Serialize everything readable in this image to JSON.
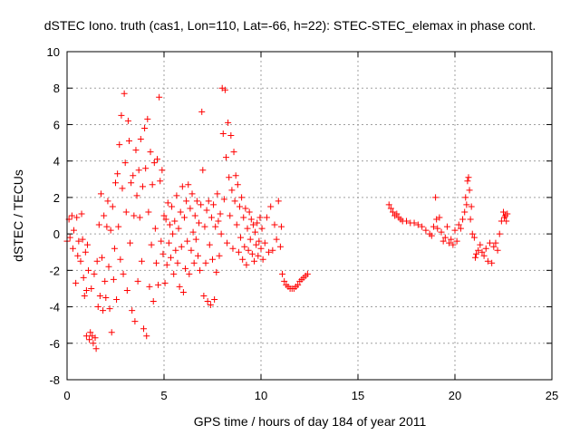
{
  "chart_data": {
    "type": "scatter",
    "title": "dSTEC Iono. truth (cas1, Lon=110, Lat=-66, h=22): STEC-STEC_elemax in phase cont.",
    "xlabel": "GPS time / hours of day 184 of year 2011",
    "ylabel": "dSTEC  / TECUs",
    "xlim": [
      0,
      25
    ],
    "ylim": [
      -8,
      10
    ],
    "xticks": [
      "0",
      "5",
      "10",
      "15",
      "20",
      "25"
    ],
    "yticks": [
      "-8",
      "-6",
      "-4",
      "-2",
      "0",
      "2",
      "4",
      "6",
      "8",
      "10"
    ],
    "grid": true,
    "marker": "+",
    "color": "#ff0000",
    "series": [
      {
        "points": [
          [
            0.0,
            -0.4
          ],
          [
            0.1,
            0.8
          ],
          [
            0.15,
            -0.2
          ],
          [
            0.25,
            1.0
          ],
          [
            0.3,
            -0.8
          ],
          [
            0.35,
            0.2
          ],
          [
            0.45,
            -2.7
          ],
          [
            0.5,
            0.9
          ],
          [
            0.55,
            -1.2
          ],
          [
            0.6,
            -0.4
          ],
          [
            0.7,
            -1.5
          ],
          [
            0.75,
            1.1
          ],
          [
            0.8,
            -0.3
          ],
          [
            0.85,
            -2.4
          ],
          [
            0.9,
            -3.4
          ],
          [
            0.95,
            -1.0
          ],
          [
            1.0,
            -3.1
          ],
          [
            1.0,
            -5.6
          ],
          [
            1.05,
            -0.6
          ],
          [
            1.1,
            -2.0
          ],
          [
            1.15,
            -5.8
          ],
          [
            1.2,
            -5.4
          ],
          [
            1.25,
            -3.0
          ],
          [
            1.3,
            -5.6
          ],
          [
            1.35,
            -6.0
          ],
          [
            1.4,
            -2.2
          ],
          [
            1.45,
            -5.7
          ],
          [
            1.5,
            -6.3
          ],
          [
            1.55,
            -1.5
          ],
          [
            1.6,
            -4.0
          ],
          [
            1.65,
            0.5
          ],
          [
            1.7,
            -3.4
          ],
          [
            1.75,
            2.2
          ],
          [
            1.8,
            -1.3
          ],
          [
            1.85,
            -4.2
          ],
          [
            1.9,
            1.0
          ],
          [
            1.95,
            -2.6
          ],
          [
            2.0,
            -3.5
          ],
          [
            2.05,
            0.4
          ],
          [
            2.1,
            1.8
          ],
          [
            2.15,
            -1.8
          ],
          [
            2.2,
            -4.1
          ],
          [
            2.25,
            0.2
          ],
          [
            2.3,
            -5.4
          ],
          [
            2.35,
            1.5
          ],
          [
            2.4,
            -2.5
          ],
          [
            2.45,
            -0.8
          ],
          [
            2.5,
            2.8
          ],
          [
            2.55,
            -3.6
          ],
          [
            2.6,
            3.3
          ],
          [
            2.65,
            0.4
          ],
          [
            2.7,
            4.9
          ],
          [
            2.75,
            -1.4
          ],
          [
            2.8,
            6.5
          ],
          [
            2.85,
            2.5
          ],
          [
            2.9,
            -2.2
          ],
          [
            2.95,
            7.7
          ],
          [
            3.0,
            3.9
          ],
          [
            3.05,
            1.2
          ],
          [
            3.1,
            -3.1
          ],
          [
            3.15,
            6.2
          ],
          [
            3.2,
            5.1
          ],
          [
            3.25,
            -0.5
          ],
          [
            3.3,
            2.8
          ],
          [
            3.35,
            -4.2
          ],
          [
            3.4,
            3.2
          ],
          [
            3.45,
            1.0
          ],
          [
            3.5,
            -4.8
          ],
          [
            3.55,
            4.6
          ],
          [
            3.6,
            2.1
          ],
          [
            3.65,
            -2.6
          ],
          [
            3.7,
            3.5
          ],
          [
            3.75,
            0.9
          ],
          [
            3.8,
            5.2
          ],
          [
            3.85,
            -1.5
          ],
          [
            3.9,
            2.6
          ],
          [
            3.95,
            -5.2
          ],
          [
            4.0,
            5.8
          ],
          [
            4.05,
            3.6
          ],
          [
            4.1,
            -5.6
          ],
          [
            4.15,
            6.3
          ],
          [
            4.2,
            1.2
          ],
          [
            4.25,
            -2.9
          ],
          [
            4.3,
            4.5
          ],
          [
            4.35,
            -0.6
          ],
          [
            4.4,
            2.7
          ],
          [
            4.45,
            -3.7
          ],
          [
            4.5,
            3.9
          ],
          [
            4.55,
            0.3
          ],
          [
            4.6,
            -1.6
          ],
          [
            4.65,
            4.1
          ],
          [
            4.7,
            -2.8
          ],
          [
            4.75,
            7.5
          ],
          [
            4.8,
            2.9
          ],
          [
            4.85,
            -0.4
          ],
          [
            4.9,
            3.5
          ],
          [
            4.95,
            -1.1
          ],
          [
            5.0,
            1.0
          ],
          [
            5.05,
            -2.7
          ],
          [
            5.1,
            0.8
          ],
          [
            5.15,
            -1.7
          ],
          [
            5.2,
            1.7
          ],
          [
            5.25,
            -0.5
          ],
          [
            5.3,
            0.5
          ],
          [
            5.35,
            -1.3
          ],
          [
            5.4,
            1.5
          ],
          [
            5.45,
            0.0
          ],
          [
            5.5,
            -2.2
          ],
          [
            5.55,
            0.7
          ],
          [
            5.6,
            -0.9
          ],
          [
            5.65,
            2.1
          ],
          [
            5.7,
            -1.6
          ],
          [
            5.75,
            0.3
          ],
          [
            5.8,
            -2.9
          ],
          [
            5.85,
            1.2
          ],
          [
            5.9,
            -0.7
          ],
          [
            5.95,
            2.6
          ],
          [
            6.0,
            -3.2
          ],
          [
            6.05,
            0.9
          ],
          [
            6.1,
            -1.9
          ],
          [
            6.15,
            1.8
          ],
          [
            6.2,
            -0.4
          ],
          [
            6.25,
            2.7
          ],
          [
            6.3,
            -2.2
          ],
          [
            6.35,
            1.4
          ],
          [
            6.4,
            -0.9
          ],
          [
            6.45,
            2.2
          ],
          [
            6.5,
            0.1
          ],
          [
            6.55,
            -1.6
          ],
          [
            6.6,
            1.0
          ],
          [
            6.65,
            -0.3
          ],
          [
            6.7,
            1.8
          ],
          [
            6.75,
            -1.2
          ],
          [
            6.8,
            0.6
          ],
          [
            6.85,
            -2.0
          ],
          [
            6.9,
            1.6
          ],
          [
            6.95,
            6.7
          ],
          [
            7.0,
            3.5
          ],
          [
            7.05,
            -3.4
          ],
          [
            7.1,
            0.4
          ],
          [
            7.15,
            -1.6
          ],
          [
            7.2,
            1.3
          ],
          [
            7.25,
            -3.7
          ],
          [
            7.3,
            1.8
          ],
          [
            7.35,
            -0.6
          ],
          [
            7.4,
            -3.9
          ],
          [
            7.45,
            0.9
          ],
          [
            7.5,
            -1.4
          ],
          [
            7.55,
            1.6
          ],
          [
            7.6,
            -3.6
          ],
          [
            7.65,
            0.4
          ],
          [
            7.7,
            -2.1
          ],
          [
            7.75,
            2.2
          ],
          [
            7.8,
            0.7
          ],
          [
            7.85,
            -1.2
          ],
          [
            7.9,
            1.1
          ],
          [
            7.95,
            0.0
          ],
          [
            8.0,
            8.0
          ],
          [
            8.05,
            5.5
          ],
          [
            8.1,
            1.9
          ],
          [
            8.15,
            7.9
          ],
          [
            8.2,
            4.2
          ],
          [
            8.25,
            -0.5
          ],
          [
            8.3,
            6.1
          ],
          [
            8.35,
            3.1
          ],
          [
            8.4,
            1.0
          ],
          [
            8.45,
            5.4
          ],
          [
            8.5,
            2.4
          ],
          [
            8.55,
            -0.8
          ],
          [
            8.6,
            4.5
          ],
          [
            8.65,
            1.8
          ],
          [
            8.7,
            3.2
          ],
          [
            8.75,
            0.5
          ],
          [
            8.8,
            2.7
          ],
          [
            8.85,
            -1.0
          ],
          [
            8.9,
            1.5
          ],
          [
            8.95,
            -0.2
          ],
          [
            9.0,
            2.0
          ],
          [
            9.05,
            -1.4
          ],
          [
            9.1,
            0.9
          ],
          [
            9.15,
            -0.7
          ],
          [
            9.2,
            1.4
          ],
          [
            9.25,
            -1.7
          ],
          [
            9.3,
            0.3
          ],
          [
            9.35,
            -0.9
          ],
          [
            9.4,
            1.2
          ],
          [
            9.45,
            -0.3
          ],
          [
            9.5,
            0.8
          ],
          [
            9.55,
            -1.1
          ],
          [
            9.6,
            0.5
          ],
          [
            9.65,
            -1.5
          ],
          [
            9.7,
            0.1
          ],
          [
            9.75,
            -0.6
          ],
          [
            9.8,
            0.6
          ],
          [
            9.85,
            -1.2
          ],
          [
            9.9,
            -0.4
          ],
          [
            9.95,
            0.9
          ],
          [
            10.0,
            -0.8
          ],
          [
            10.05,
            0.3
          ],
          [
            10.1,
            -1.4
          ],
          [
            10.2,
            -0.5
          ],
          [
            10.3,
            0.9
          ],
          [
            10.4,
            -1.0
          ],
          [
            10.5,
            1.5
          ],
          [
            10.6,
            -0.9
          ],
          [
            10.7,
            0.5
          ],
          [
            10.8,
            -0.3
          ],
          [
            10.9,
            1.8
          ],
          [
            11.0,
            -0.7
          ],
          [
            11.05,
            0.4
          ],
          [
            11.1,
            -2.2
          ],
          [
            11.2,
            -2.6
          ],
          [
            11.3,
            -2.8
          ],
          [
            11.4,
            -2.9
          ],
          [
            11.5,
            -3.0
          ],
          [
            11.6,
            -3.0
          ],
          [
            11.7,
            -3.0
          ],
          [
            11.8,
            -2.9
          ],
          [
            11.9,
            -2.8
          ],
          [
            12.0,
            -2.6
          ],
          [
            12.1,
            -2.5
          ],
          [
            12.2,
            -2.4
          ],
          [
            12.3,
            -2.3
          ],
          [
            12.4,
            -2.2
          ],
          [
            16.6,
            1.6
          ],
          [
            16.7,
            1.4
          ],
          [
            16.8,
            1.2
          ],
          [
            16.9,
            1.0
          ],
          [
            17.0,
            1.1
          ],
          [
            17.1,
            0.9
          ],
          [
            17.2,
            0.8
          ],
          [
            17.3,
            0.7
          ],
          [
            17.5,
            0.7
          ],
          [
            17.7,
            0.6
          ],
          [
            17.9,
            0.6
          ],
          [
            18.1,
            0.5
          ],
          [
            18.3,
            0.4
          ],
          [
            18.5,
            0.2
          ],
          [
            18.7,
            0.0
          ],
          [
            18.8,
            -0.1
          ],
          [
            18.9,
            0.4
          ],
          [
            19.0,
            2.0
          ],
          [
            19.05,
            0.8
          ],
          [
            19.1,
            0.3
          ],
          [
            19.2,
            0.9
          ],
          [
            19.3,
            0.1
          ],
          [
            19.4,
            -0.4
          ],
          [
            19.5,
            -0.2
          ],
          [
            19.6,
            0.4
          ],
          [
            19.7,
            -0.5
          ],
          [
            19.8,
            -0.3
          ],
          [
            19.9,
            -0.6
          ],
          [
            20.0,
            0.2
          ],
          [
            20.1,
            -0.4
          ],
          [
            20.2,
            0.5
          ],
          [
            20.3,
            0.3
          ],
          [
            20.4,
            0.8
          ],
          [
            20.5,
            1.2
          ],
          [
            20.55,
            2.0
          ],
          [
            20.6,
            1.6
          ],
          [
            20.65,
            2.9
          ],
          [
            20.7,
            3.1
          ],
          [
            20.75,
            2.4
          ],
          [
            20.8,
            0.8
          ],
          [
            20.85,
            1.5
          ],
          [
            20.9,
            0.0
          ],
          [
            21.0,
            -0.2
          ],
          [
            21.05,
            -1.3
          ],
          [
            21.1,
            -1.1
          ],
          [
            21.2,
            -0.9
          ],
          [
            21.3,
            -0.6
          ],
          [
            21.4,
            -1.0
          ],
          [
            21.5,
            -1.2
          ],
          [
            21.6,
            -0.8
          ],
          [
            21.7,
            -1.5
          ],
          [
            21.8,
            -0.5
          ],
          [
            21.9,
            -1.6
          ],
          [
            22.0,
            -0.7
          ],
          [
            22.1,
            -0.5
          ],
          [
            22.2,
            -0.9
          ],
          [
            22.3,
            0.0
          ],
          [
            22.4,
            0.7
          ],
          [
            22.5,
            1.2
          ],
          [
            22.55,
            0.9
          ],
          [
            22.6,
            1.0
          ],
          [
            22.65,
            0.7
          ],
          [
            22.7,
            1.1
          ]
        ]
      }
    ]
  }
}
